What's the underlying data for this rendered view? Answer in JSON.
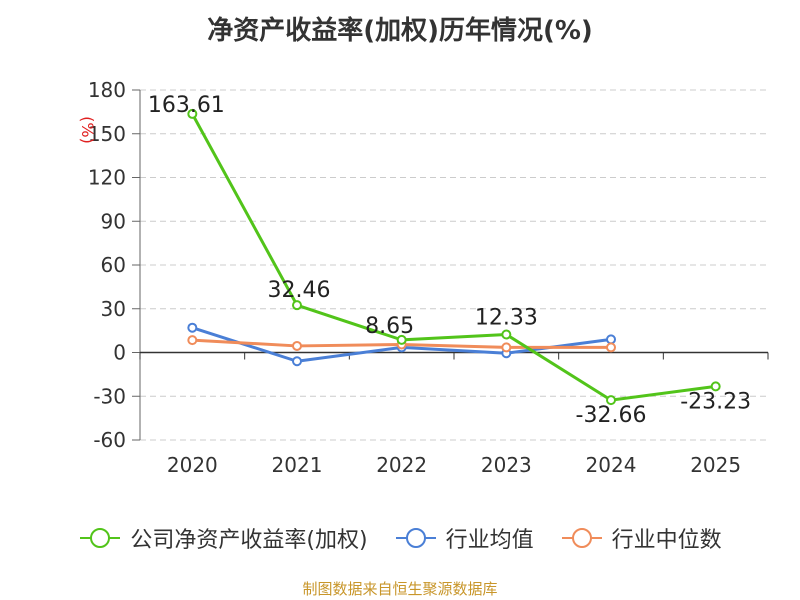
{
  "chart_data": {
    "type": "line",
    "title": "净资产收益率(加权)历年情况(%)",
    "ylabel": "(%)",
    "categories": [
      "2020",
      "2021",
      "2022",
      "2023",
      "2024",
      "2025"
    ],
    "ylim": [
      -60,
      180
    ],
    "yticks": [
      180,
      150,
      120,
      90,
      60,
      30,
      0,
      -30,
      -60
    ],
    "grid": true,
    "legend_position": "bottom",
    "series": [
      {
        "name": "公司净资产收益率(加权)",
        "color": "#52c41a",
        "values": [
          163.61,
          32.46,
          8.65,
          12.33,
          -32.66,
          -23.23
        ],
        "labels": [
          "163.61",
          "32.46",
          "8.65",
          "12.33",
          "-32.66",
          "-23.23"
        ]
      },
      {
        "name": "行业均值",
        "color": "#4a7fd6",
        "values": [
          17.0,
          -6.0,
          3.5,
          -0.5,
          9.0,
          null
        ]
      },
      {
        "name": "行业中位数",
        "color": "#f08c5a",
        "values": [
          8.5,
          4.5,
          5.5,
          3.5,
          3.5,
          null
        ]
      }
    ]
  },
  "footer": {
    "source": "制图数据来自恒生聚源数据库"
  }
}
